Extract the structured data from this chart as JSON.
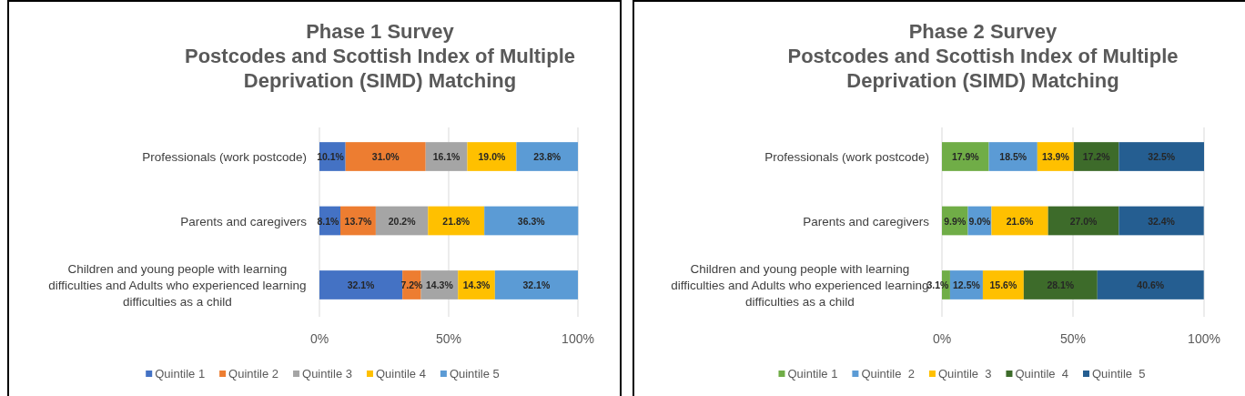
{
  "chart_data": [
    {
      "type": "bar",
      "orientation": "horizontal",
      "stacked": true,
      "title": "Phase 1 Survey\nPostcodes and Scottish Index of Multiple\nDeprivation (SIMD) Matching",
      "categories": [
        "Professionals (work postcode)",
        "Parents and caregivers",
        "Children and young people with learning difficulties and Adults who experienced learning difficulties as a child"
      ],
      "xlim": [
        0,
        100
      ],
      "xticks": [
        {
          "value": 0,
          "label": "0%"
        },
        {
          "value": 50,
          "label": "50%"
        },
        {
          "value": 100,
          "label": "100%"
        }
      ],
      "grid": "x",
      "legend": "bottom",
      "series": [
        {
          "name": "Quintile 1",
          "color": "#4472c4",
          "values": [
            10.1,
            8.1,
            32.1
          ],
          "value_labels": [
            "10.1%",
            "8.1%",
            "32.1%"
          ]
        },
        {
          "name": "Quintile 2",
          "color": "#ed7d31",
          "values": [
            31.0,
            13.7,
            7.2
          ],
          "value_labels": [
            "31.0%",
            "13.7%",
            "7.2%"
          ]
        },
        {
          "name": "Quintile 3",
          "color": "#a5a5a5",
          "values": [
            16.1,
            20.2,
            14.3
          ],
          "value_labels": [
            "16.1%",
            "20.2%",
            "14.3%"
          ]
        },
        {
          "name": "Quintile 4",
          "color": "#ffc000",
          "values": [
            19.0,
            21.8,
            14.3
          ],
          "value_labels": [
            "19.0%",
            "21.8%",
            "14.3%"
          ]
        },
        {
          "name": "Quintile 5",
          "color": "#5b9bd5",
          "values": [
            23.8,
            36.3,
            32.1
          ],
          "value_labels": [
            "23.8%",
            "36.3%",
            "32.1%"
          ]
        }
      ]
    },
    {
      "type": "bar",
      "orientation": "horizontal",
      "stacked": true,
      "title": "Phase 2 Survey\nPostcodes and Scottish Index of Multiple\nDeprivation (SIMD) Matching",
      "categories": [
        "Professionals (work postcode)",
        "Parents and caregivers",
        "Children and young people with learning difficulties and Adults who experienced learning difficulties as a child"
      ],
      "xlim": [
        0,
        100
      ],
      "xticks": [
        {
          "value": 0,
          "label": "0%"
        },
        {
          "value": 50,
          "label": "50%"
        },
        {
          "value": 100,
          "label": "100%"
        }
      ],
      "grid": "x",
      "legend": "bottom",
      "series": [
        {
          "name": "Quintile 1",
          "color": "#70ad47",
          "values": [
            17.9,
            9.9,
            3.1
          ],
          "value_labels": [
            "17.9%",
            "9.9%",
            "3.1%"
          ]
        },
        {
          "name": "Quintile  2",
          "color": "#5b9bd5",
          "values": [
            18.5,
            9.0,
            12.5
          ],
          "value_labels": [
            "18.5%",
            "9.0%",
            "12.5%"
          ]
        },
        {
          "name": "Quintile  3",
          "color": "#ffc000",
          "values": [
            13.9,
            21.6,
            15.6
          ],
          "value_labels": [
            "13.9%",
            "21.6%",
            "15.6%"
          ]
        },
        {
          "name": "Quintile  4",
          "color": "#3d6b2a",
          "values": [
            17.2,
            27.0,
            28.1
          ],
          "value_labels": [
            "17.2%",
            "27.0%",
            "28.1%"
          ]
        },
        {
          "name": "Quintile  5",
          "color": "#255e91",
          "values": [
            32.5,
            32.4,
            40.6
          ],
          "value_labels": [
            "32.5%",
            "32.4%",
            "40.6%"
          ]
        }
      ]
    }
  ]
}
